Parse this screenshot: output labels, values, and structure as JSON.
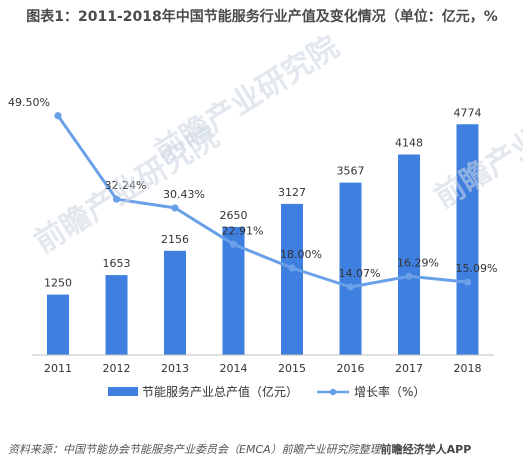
{
  "title": "图表1：2011-2018年中国节能服务行业产值及变化情况（单位：亿元，%",
  "source": "资料来源：中国节能协会节能服务产业委员会（EMCA）前瞻产业研究院整理",
  "source_logo": "前瞻经济学人APP",
  "watermark": "前瞻产业研究院",
  "colors": {
    "bar": "#3f7fdf",
    "line": "#6aa0e8",
    "axis": "#bfbfbf"
  },
  "chart_data": {
    "type": "bar",
    "categories": [
      "2011",
      "2012",
      "2013",
      "2014",
      "2015",
      "2016",
      "2017",
      "2018"
    ],
    "series": [
      {
        "name": "节能服务产业总产值（亿元）",
        "kind": "bar",
        "axis": "left",
        "values": [
          1250,
          1653,
          2156,
          2650,
          3127,
          3567,
          4148,
          4774
        ]
      },
      {
        "name": "增长率（%）",
        "kind": "line",
        "axis": "right",
        "values": [
          49.5,
          32.24,
          30.43,
          22.91,
          18.0,
          14.07,
          16.29,
          15.09
        ]
      }
    ],
    "bar_labels": [
      "1250",
      "1653",
      "2156",
      "2650",
      "3127",
      "3567",
      "4148",
      "4774"
    ],
    "line_labels": [
      "49.50%",
      "32.24%",
      "30.43%",
      "22.91%",
      "18.00%",
      "14.07%",
      "16.29%",
      "15.09%"
    ],
    "ylim_left": [
      0,
      6000
    ],
    "ylim_right": [
      0,
      60
    ],
    "grid": false,
    "legend_position": "bottom"
  }
}
